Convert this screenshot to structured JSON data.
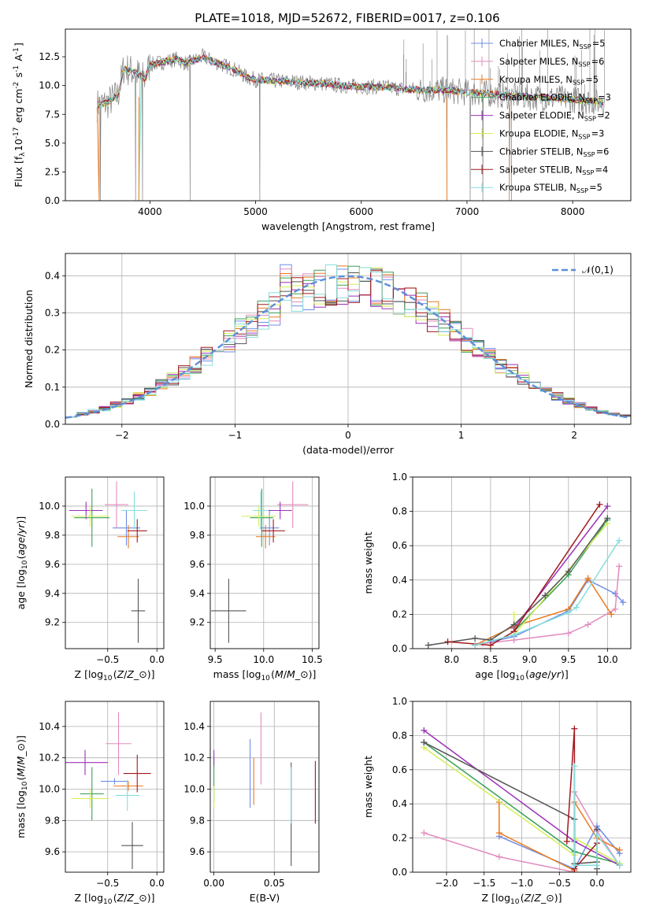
{
  "figure": {
    "title": "PLATE=1018, MJD=52672, FIBERID=0017, z=0.106"
  },
  "models": [
    {
      "key": "chab_miles",
      "label": "Chabrier MILES, N$_{SSP}$=5",
      "color": "#6f8ee6"
    },
    {
      "key": "salp_miles",
      "label": "Salpeter MILES, N$_{SSP}$=6",
      "color": "#e38bbd"
    },
    {
      "key": "krou_miles",
      "label": "Kroupa MILES, N$_{SSP}$=5",
      "color": "#ea7a20"
    },
    {
      "key": "chab_elodie",
      "label": "Chabrier ELODIE, N$_{SSP}$=3",
      "color": "#3aa05a"
    },
    {
      "key": "salp_elodie",
      "label": "Salpeter ELODIE, N$_{SSP}$=2",
      "color": "#9b32b8"
    },
    {
      "key": "krou_elodie",
      "label": "Kroupa ELODIE, N$_{SSP}$=3",
      "color": "#d4ef5a"
    },
    {
      "key": "chab_stelib",
      "label": "Chabrier STELIB, N$_{SSP}$=6",
      "color": "#555555"
    },
    {
      "key": "salp_stelib",
      "label": "Salpeter STELIB, N$_{SSP}$=4",
      "color": "#a3181f"
    },
    {
      "key": "krou_stelib",
      "label": "Kroupa STELIB, N$_{SSP}$=5",
      "color": "#86dede"
    }
  ],
  "chart_data": [
    {
      "id": "spectrum",
      "type": "line",
      "xlabel": "wavelength [Angstrom, rest frame]",
      "ylabel": "Flux [f$_{\\lambda}$10$^{-17}$ erg cm$^{-2}$ s$^{-1}$ A$^{-1}$]",
      "xlim": [
        3200,
        8550
      ],
      "ylim": [
        0,
        14.9
      ],
      "xticks": [
        4000,
        5000,
        6000,
        7000,
        8000
      ],
      "yticks": [
        0.0,
        2.5,
        5.0,
        7.5,
        10.0,
        12.5
      ],
      "grid": false,
      "legend": "right",
      "data_color": "#808080",
      "continuum": [
        [
          3500,
          8.3
        ],
        [
          3600,
          8.5
        ],
        [
          3700,
          9.2
        ],
        [
          3750,
          11.5
        ],
        [
          3850,
          11.2
        ],
        [
          3950,
          10.6
        ],
        [
          4000,
          11.8
        ],
        [
          4100,
          12.0
        ],
        [
          4250,
          12.3
        ],
        [
          4350,
          11.9
        ],
        [
          4500,
          12.5
        ],
        [
          4600,
          12.1
        ],
        [
          4800,
          11.4
        ],
        [
          4900,
          10.8
        ],
        [
          5000,
          10.5
        ],
        [
          5200,
          10.4
        ],
        [
          5400,
          10.3
        ],
        [
          5600,
          10.2
        ],
        [
          5800,
          10.0
        ],
        [
          6000,
          9.9
        ],
        [
          6200,
          9.9
        ],
        [
          6400,
          9.7
        ],
        [
          6600,
          9.6
        ],
        [
          6800,
          9.6
        ],
        [
          7000,
          9.4
        ],
        [
          7200,
          9.3
        ],
        [
          7400,
          9.1
        ],
        [
          7600,
          9.0
        ],
        [
          7800,
          8.9
        ],
        [
          8000,
          8.8
        ],
        [
          8200,
          8.6
        ],
        [
          8300,
          8.5
        ]
      ],
      "absorption_lines": [
        [
          3530,
          0
        ],
        [
          3865,
          0
        ],
        [
          3930,
          0
        ],
        [
          4380,
          0
        ],
        [
          5040,
          0
        ],
        [
          6810,
          0
        ],
        [
          7030,
          0
        ],
        [
          7150,
          0
        ],
        [
          7400,
          0
        ]
      ],
      "model_drops": [
        3520,
        3895,
        6810,
        7420
      ]
    },
    {
      "id": "residuals",
      "type": "area",
      "xlabel": "(data-model)/error",
      "ylabel": "Normed distribution",
      "xlim": [
        -2.5,
        2.5
      ],
      "ylim": [
        0,
        0.46
      ],
      "xticks": [
        -2,
        -1,
        0,
        1,
        2
      ],
      "yticks": [
        0.0,
        0.1,
        0.2,
        0.3,
        0.4
      ],
      "xticklabels": [
        "−2",
        "−1",
        "0",
        "1",
        "2"
      ],
      "grid": true,
      "legend": "top-right",
      "gaussian_label": "$\\mathcal{N}(0,1)$",
      "gaussian_color": "#5b8fd9",
      "bin_width": 0.1
    },
    {
      "id": "age_vs_Z",
      "type": "scatter",
      "xlabel": "Z [log$_{10}$($Z/Z_\\odot$)]",
      "ylabel": "age  [log$_{10}$($age/yr$)]",
      "xlim": [
        -0.93,
        0.07
      ],
      "ylim": [
        9.02,
        10.2
      ],
      "xticks": [
        -0.5,
        0.0
      ],
      "xticklabels": [
        "−0.5",
        "0.0"
      ],
      "yticks": [
        9.2,
        9.4,
        9.6,
        9.8,
        10.0
      ],
      "grid": true,
      "points": [
        {
          "m": "chab_miles",
          "x": -0.31,
          "xerr": 0.14,
          "y": 9.85,
          "yerr": 0.12
        },
        {
          "m": "salp_miles",
          "x": -0.41,
          "xerr": 0.12,
          "y": 10.01,
          "yerr": 0.16
        },
        {
          "m": "krou_miles",
          "x": -0.29,
          "xerr": 0.11,
          "y": 9.79,
          "yerr": 0.08
        },
        {
          "m": "chab_elodie",
          "x": -0.66,
          "xerr": 0.18,
          "y": 9.92,
          "yerr": 0.2
        },
        {
          "m": "salp_elodie",
          "x": -0.72,
          "xerr": 0.17,
          "y": 9.97,
          "yerr": 0.06
        },
        {
          "m": "krou_elodie",
          "x": -0.68,
          "xerr": 0.19,
          "y": 9.93,
          "yerr": 0.07
        },
        {
          "m": "chab_stelib",
          "x": -0.19,
          "xerr": 0.07,
          "y": 9.28,
          "yerr": 0.22
        },
        {
          "m": "salp_stelib",
          "x": -0.2,
          "xerr": 0.1,
          "y": 9.83,
          "yerr": 0.08
        },
        {
          "m": "krou_stelib",
          "x": -0.23,
          "xerr": 0.13,
          "y": 9.97,
          "yerr": 0.13
        }
      ]
    },
    {
      "id": "age_vs_mass",
      "type": "scatter",
      "xlabel": "mass [log$_{10}$($M/M_\\odot$)]",
      "ylabel": "",
      "xlim": [
        9.45,
        10.57
      ],
      "ylim": [
        9.02,
        10.2
      ],
      "xticks": [
        9.5,
        10.0,
        10.5
      ],
      "yticks": [
        9.2,
        9.4,
        9.6,
        9.8,
        10.0
      ],
      "grid": true,
      "points": [
        {
          "m": "chab_miles",
          "x": 10.06,
          "xerr": 0.1,
          "y": 9.85,
          "yerr": 0.12
        },
        {
          "m": "salp_miles",
          "x": 10.3,
          "xerr": 0.16,
          "y": 10.01,
          "yerr": 0.16
        },
        {
          "m": "krou_miles",
          "x": 10.02,
          "xerr": 0.1,
          "y": 9.79,
          "yerr": 0.08
        },
        {
          "m": "chab_elodie",
          "x": 9.98,
          "xerr": 0.12,
          "y": 9.92,
          "yerr": 0.2
        },
        {
          "m": "salp_elodie",
          "x": 10.17,
          "xerr": 0.12,
          "y": 9.97,
          "yerr": 0.06
        },
        {
          "m": "krou_elodie",
          "x": 9.95,
          "xerr": 0.18,
          "y": 9.93,
          "yerr": 0.07
        },
        {
          "m": "chab_stelib",
          "x": 9.64,
          "xerr": 0.18,
          "y": 9.28,
          "yerr": 0.22
        },
        {
          "m": "salp_stelib",
          "x": 10.1,
          "xerr": 0.12,
          "y": 9.83,
          "yerr": 0.08
        },
        {
          "m": "krou_stelib",
          "x": 9.97,
          "xerr": 0.08,
          "y": 9.97,
          "yerr": 0.13
        }
      ]
    },
    {
      "id": "weight_vs_age",
      "type": "line",
      "xlabel": "age  [log$_{10}$($age/yr$)]",
      "ylabel": "mass weight",
      "xlim": [
        7.5,
        10.3
      ],
      "ylim": [
        0,
        1.0
      ],
      "xticks": [
        8.0,
        8.5,
        9.0,
        9.5,
        10.0
      ],
      "yticks": [
        0.0,
        0.2,
        0.4,
        0.6,
        0.8,
        1.0
      ],
      "grid": true,
      "series": [
        {
          "m": "chab_miles",
          "x": [
            8.3,
            8.8,
            9.5,
            9.75,
            10.1,
            10.2
          ],
          "y": [
            0.02,
            0.07,
            0.22,
            0.4,
            0.32,
            0.27
          ]
        },
        {
          "m": "salp_miles",
          "x": [
            8.4,
            8.8,
            9.5,
            9.75,
            10.1,
            10.15
          ],
          "y": [
            0.03,
            0.05,
            0.09,
            0.14,
            0.23,
            0.48
          ]
        },
        {
          "m": "krou_miles",
          "x": [
            8.3,
            8.8,
            9.5,
            9.75,
            10.05
          ],
          "y": [
            0.02,
            0.13,
            0.23,
            0.41,
            0.2
          ]
        },
        {
          "m": "chab_elodie",
          "x": [
            8.8,
            9.5,
            10.0
          ],
          "y": [
            0.1,
            0.43,
            0.75
          ]
        },
        {
          "m": "salp_elodie",
          "x": [
            8.8,
            10.0
          ],
          "y": [
            0.12,
            0.83
          ]
        },
        {
          "m": "krou_elodie",
          "x": [
            8.8,
            8.8,
            10.0
          ],
          "y": [
            0.2,
            0.08,
            0.73
          ]
        },
        {
          "m": "chab_stelib",
          "x": [
            7.7,
            8.3,
            8.5,
            8.8,
            9.2,
            9.5,
            10.0
          ],
          "y": [
            0.02,
            0.06,
            0.05,
            0.14,
            0.31,
            0.45,
            0.76
          ]
        },
        {
          "m": "salp_stelib",
          "x": [
            7.95,
            8.5,
            8.8,
            9.9
          ],
          "y": [
            0.04,
            0.02,
            0.1,
            0.84
          ]
        },
        {
          "m": "krou_stelib",
          "x": [
            8.3,
            8.8,
            9.5,
            9.6,
            10.15
          ],
          "y": [
            0.02,
            0.08,
            0.21,
            0.24,
            0.63
          ]
        }
      ]
    },
    {
      "id": "mass_vs_Z",
      "type": "scatter",
      "xlabel": "Z [log$_{10}$($Z/Z_\\odot$)]",
      "ylabel": "mass [log$_{10}$($M/M_\\odot$)]",
      "xlim": [
        -0.93,
        0.07
      ],
      "ylim": [
        9.47,
        10.56
      ],
      "xticks": [
        -0.5,
        0.0
      ],
      "xticklabels": [
        "−0.5",
        "0.0"
      ],
      "yticks": [
        9.6,
        9.8,
        10.0,
        10.2,
        10.4
      ],
      "grid": true,
      "points": [
        {
          "m": "chab_miles",
          "x": -0.43,
          "xerr": 0.14,
          "y": 10.05,
          "yerr": 0.02
        },
        {
          "m": "salp_miles",
          "x": -0.39,
          "xerr": 0.13,
          "y": 10.29,
          "yerr": 0.2
        },
        {
          "m": "krou_miles",
          "x": -0.29,
          "xerr": 0.15,
          "y": 10.02,
          "yerr": 0.03
        },
        {
          "m": "chab_elodie",
          "x": -0.66,
          "xerr": 0.12,
          "y": 9.97,
          "yerr": 0.17
        },
        {
          "m": "salp_elodie",
          "x": -0.73,
          "xerr": 0.23,
          "y": 10.17,
          "yerr": 0.08
        },
        {
          "m": "krou_elodie",
          "x": -0.68,
          "xerr": 0.19,
          "y": 9.94,
          "yerr": 0.06
        },
        {
          "m": "chab_stelib",
          "x": -0.25,
          "xerr": 0.11,
          "y": 9.64,
          "yerr": 0.15
        },
        {
          "m": "salp_stelib",
          "x": -0.2,
          "xerr": 0.14,
          "y": 10.1,
          "yerr": 0.12
        },
        {
          "m": "krou_stelib",
          "x": -0.3,
          "xerr": 0.12,
          "y": 9.96,
          "yerr": 0.1
        }
      ]
    },
    {
      "id": "mass_vs_ebv",
      "type": "scatter",
      "xlabel": "E(B-V)",
      "ylabel": "",
      "xlim": [
        -0.003,
        0.087
      ],
      "ylim": [
        9.47,
        10.56
      ],
      "xticks": [
        0.0,
        0.05
      ],
      "xticklabels": [
        "0.00",
        "0.05"
      ],
      "yticks": [
        9.6,
        9.8,
        10.0,
        10.2,
        10.4
      ],
      "grid": true,
      "points": [
        {
          "m": "chab_miles",
          "x": 0.03,
          "xerr": 0,
          "y": 10.1,
          "yerr": 0.22
        },
        {
          "m": "salp_miles",
          "x": 0.039,
          "xerr": 0,
          "y": 10.26,
          "yerr": 0.23
        },
        {
          "m": "krou_miles",
          "x": 0.033,
          "xerr": 0,
          "y": 10.05,
          "yerr": 0.15
        },
        {
          "m": "chab_elodie",
          "x": 0.0,
          "xerr": 0,
          "y": 10.06,
          "yerr": 0.14
        },
        {
          "m": "salp_elodie",
          "x": 0.0,
          "xerr": 0,
          "y": 10.2,
          "yerr": 0.05
        },
        {
          "m": "krou_elodie",
          "x": 0.0,
          "xerr": 0,
          "y": 9.95,
          "yerr": 0.07
        },
        {
          "m": "chab_stelib",
          "x": 0.064,
          "xerr": 0,
          "y": 9.84,
          "yerr": 0.33
        },
        {
          "m": "salp_stelib",
          "x": 0.084,
          "xerr": 0,
          "y": 9.98,
          "yerr": 0.2
        },
        {
          "m": "krou_stelib",
          "x": 0.064,
          "xerr": 0,
          "y": 9.96,
          "yerr": 0.18
        }
      ]
    },
    {
      "id": "weight_vs_Z",
      "type": "line",
      "xlabel": "Z [log$_{10}$($Z/Z_\\odot$)]",
      "ylabel": "mass weight",
      "xlim": [
        -2.45,
        0.45
      ],
      "ylim": [
        0,
        1.0
      ],
      "xticks": [
        -2.0,
        -1.5,
        -1.0,
        -0.5,
        0.0
      ],
      "xticklabels": [
        "−2.0",
        "−1.5",
        "−1.0",
        "−0.5",
        "0.0"
      ],
      "yticks": [
        0.0,
        0.2,
        0.4,
        0.6,
        0.8,
        1.0
      ],
      "grid": true,
      "series": [
        {
          "m": "chab_miles",
          "x": [
            -1.3,
            -0.3,
            0.0,
            0.3
          ],
          "y": [
            0.21,
            0.02,
            0.27,
            0.11
          ]
        },
        {
          "m": "salp_miles",
          "x": [
            -2.3,
            -1.3,
            -0.3,
            -0.3,
            0.0,
            0.3
          ],
          "y": [
            0.23,
            0.09,
            0.0,
            0.47,
            0.24,
            0.04
          ]
        },
        {
          "m": "krou_miles",
          "x": [
            -1.3,
            -1.3,
            -0.3,
            -0.3,
            0.0,
            0.3
          ],
          "y": [
            0.41,
            0.23,
            0.01,
            0.41,
            0.2,
            0.13
          ]
        },
        {
          "m": "chab_elodie",
          "x": [
            -2.3,
            -0.3,
            0.3
          ],
          "y": [
            0.76,
            0.12,
            0.05
          ]
        },
        {
          "m": "salp_elodie",
          "x": [
            -2.3,
            -0.3,
            0.3
          ],
          "y": [
            0.83,
            0.18,
            0.04
          ]
        },
        {
          "m": "krou_elodie",
          "x": [
            -2.3,
            -0.3,
            -0.3,
            0.3
          ],
          "y": [
            0.73,
            0.1,
            0.2,
            0.05
          ]
        },
        {
          "m": "chab_stelib",
          "x": [
            -2.3,
            -0.3,
            -0.3,
            0.0,
            0.0,
            0.0
          ],
          "y": [
            0.76,
            0.31,
            0.05,
            0.06,
            0.25,
            0.02
          ]
        },
        {
          "m": "salp_stelib",
          "x": [
            -0.4,
            -0.3,
            -0.3,
            0.0
          ],
          "y": [
            0.18,
            0.84,
            0.02,
            0.17
          ]
        },
        {
          "m": "krou_stelib",
          "x": [
            -0.3,
            -0.3,
            0.0,
            0.0,
            0.3
          ],
          "y": [
            0.62,
            0.04,
            0.04,
            0.22,
            0.04
          ]
        }
      ]
    }
  ]
}
